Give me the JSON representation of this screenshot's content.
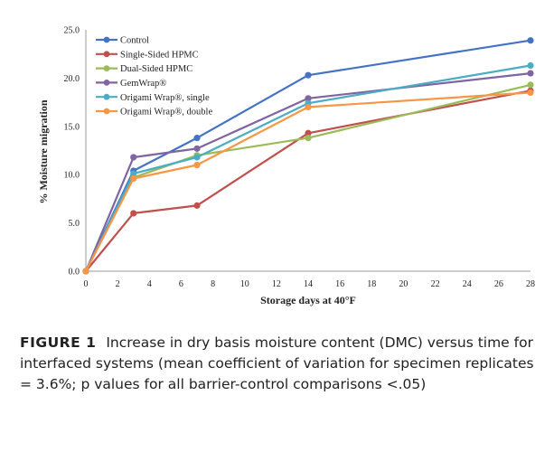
{
  "caption": {
    "label": "FIGURE 1",
    "text": "Increase in dry basis moisture content (DMC) versus time for interfaced systems (mean coefficient of variation for specimen replicates = 3.6%; p values for all barrier-control comparisons <.05)"
  },
  "chart_data": {
    "type": "line",
    "title": "",
    "xlabel": "Storage days at 40°F",
    "ylabel": "% Moisture migration",
    "xlim": [
      0,
      28
    ],
    "ylim": [
      0,
      25
    ],
    "xticks": [
      0,
      2,
      4,
      6,
      8,
      10,
      12,
      14,
      16,
      18,
      20,
      22,
      24,
      26,
      28
    ],
    "yticks": [
      "0.0",
      "5.0",
      "10.0",
      "15.0",
      "20.0",
      "25.0"
    ],
    "grid": false,
    "legend_position": "top-left",
    "x": [
      0,
      3,
      7,
      14,
      28
    ],
    "series": [
      {
        "name": "Control",
        "color": "#4472c4",
        "values": [
          0,
          10.4,
          13.8,
          20.3,
          23.9
        ]
      },
      {
        "name": "Single-Sided HPMC",
        "color": "#c0504d",
        "values": [
          0,
          6.0,
          6.8,
          14.3,
          18.7
        ]
      },
      {
        "name": "Dual-Sided HPMC",
        "color": "#9bbb59",
        "values": [
          0,
          9.7,
          12.0,
          13.8,
          19.3
        ]
      },
      {
        "name": "GemWrap®",
        "color": "#8064a2",
        "values": [
          0,
          11.8,
          12.7,
          17.9,
          20.5
        ]
      },
      {
        "name": "Origami Wrap®, single",
        "color": "#4bacc6",
        "values": [
          0,
          10.1,
          11.8,
          17.4,
          21.3
        ]
      },
      {
        "name": "Origami Wrap®, double",
        "color": "#f79646",
        "values": [
          0,
          9.6,
          11.0,
          17.0,
          18.5
        ]
      }
    ]
  }
}
